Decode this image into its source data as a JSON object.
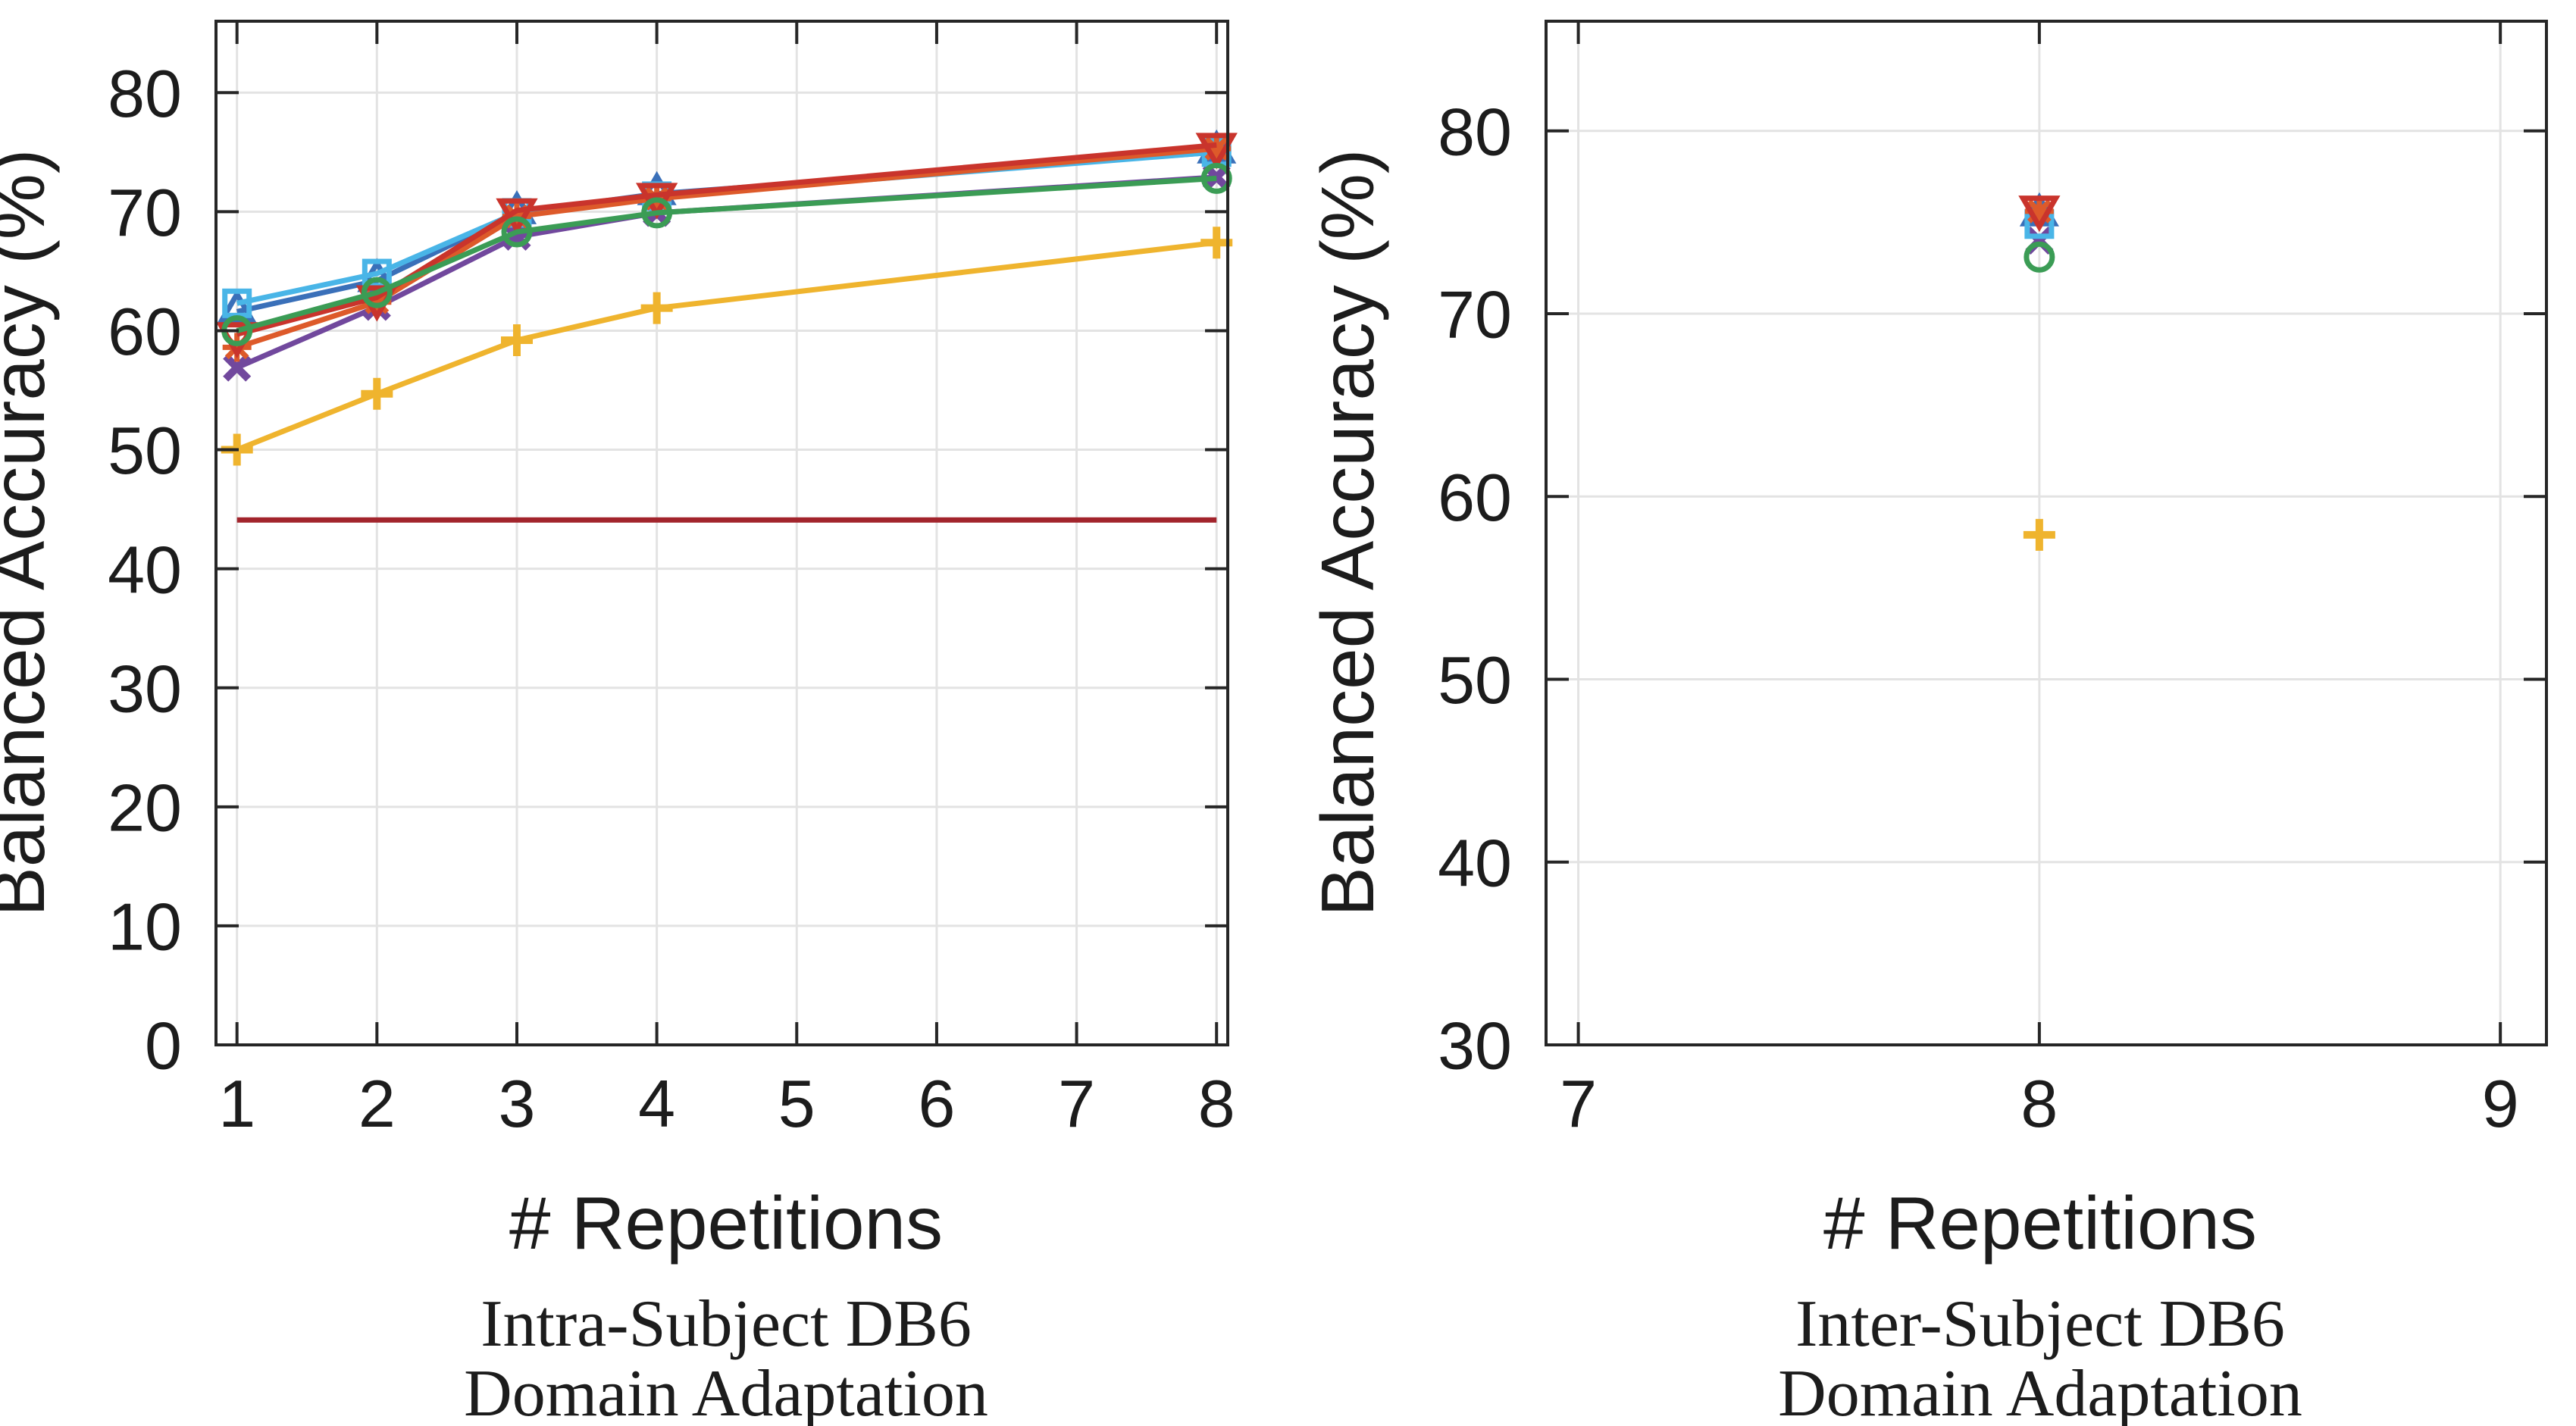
{
  "figure": {
    "background": "#FFFFFF",
    "axis_color": "#262626",
    "grid_color": "#E3E3E3",
    "text_color": "#1C1C1C"
  },
  "chart_data": [
    {
      "id": "intra-subject-db6",
      "type": "line",
      "xlabel": "# Repetitions",
      "ylabel": "Balanced Accuracy (%)",
      "caption_line1": "Intra-Subject DB6",
      "caption_line2": "Domain Adaptation",
      "xlim": [
        0.85,
        8.08
      ],
      "ylim": [
        0,
        86
      ],
      "xticks": [
        1,
        2,
        3,
        4,
        5,
        6,
        7,
        8
      ],
      "yticks": [
        0,
        10,
        20,
        30,
        40,
        50,
        60,
        70,
        80
      ],
      "grid": true,
      "legend": "none",
      "x": [
        1,
        2,
        3,
        4,
        8
      ],
      "series": [
        {
          "name": "dark-red-baseline",
          "marker": "none",
          "color": "#A2242C",
          "values": [
            44.1,
            44.1,
            44.1,
            44.1,
            44.1
          ]
        },
        {
          "name": "yellow-plus",
          "marker": "plus",
          "color": "#EFB42E",
          "values": [
            50.0,
            54.7,
            59.2,
            61.9,
            67.4
          ]
        },
        {
          "name": "purple-x",
          "marker": "x",
          "color": "#71489D",
          "values": [
            56.9,
            62.0,
            67.9,
            69.9,
            72.9
          ]
        },
        {
          "name": "blue-triangle-up",
          "marker": "triangle-up",
          "color": "#3A70B9",
          "values": [
            61.6,
            64.2,
            69.9,
            71.5,
            75.0
          ]
        },
        {
          "name": "cyan-square",
          "marker": "square",
          "color": "#49B5E7",
          "values": [
            62.3,
            64.8,
            69.9,
            71.3,
            75.0
          ]
        },
        {
          "name": "orange-asterisk",
          "marker": "asterisk",
          "color": "#DD5A2A",
          "values": [
            58.6,
            62.4,
            69.6,
            71.1,
            75.3
          ]
        },
        {
          "name": "red-triangle-down",
          "marker": "triangle-down",
          "color": "#C9342C",
          "values": [
            59.7,
            62.8,
            70.1,
            71.4,
            75.6
          ]
        },
        {
          "name": "green-circle",
          "marker": "circle",
          "color": "#3B9C55",
          "values": [
            60.0,
            63.2,
            68.3,
            69.9,
            72.8
          ]
        }
      ]
    },
    {
      "id": "inter-subject-db6",
      "type": "scatter",
      "xlabel": "# Repetitions",
      "ylabel": "Balanced Accuracy (%)",
      "caption_line1": "Inter-Subject DB6",
      "caption_line2": "Domain Adaptation",
      "xlim": [
        6.93,
        9.1
      ],
      "ylim": [
        30,
        86
      ],
      "xticks": [
        7,
        8,
        9
      ],
      "yticks": [
        30,
        40,
        50,
        60,
        70,
        80
      ],
      "grid": true,
      "legend": "none",
      "x": [
        8
      ],
      "series": [
        {
          "name": "yellow-plus",
          "marker": "plus",
          "color": "#EFB42E",
          "values": [
            57.9
          ]
        },
        {
          "name": "purple-x",
          "marker": "x",
          "color": "#71489D",
          "values": [
            74.0
          ]
        },
        {
          "name": "blue-triangle-up",
          "marker": "triangle-up",
          "color": "#3A70B9",
          "values": [
            75.4
          ]
        },
        {
          "name": "cyan-square",
          "marker": "square",
          "color": "#49B5E7",
          "values": [
            74.9
          ]
        },
        {
          "name": "orange-asterisk",
          "marker": "asterisk",
          "color": "#DD5A2A",
          "values": [
            75.6
          ]
        },
        {
          "name": "red-triangle-down",
          "marker": "triangle-down",
          "color": "#C9342C",
          "values": [
            75.8
          ]
        },
        {
          "name": "green-circle",
          "marker": "circle",
          "color": "#3B9C55",
          "values": [
            73.1
          ]
        }
      ]
    }
  ]
}
